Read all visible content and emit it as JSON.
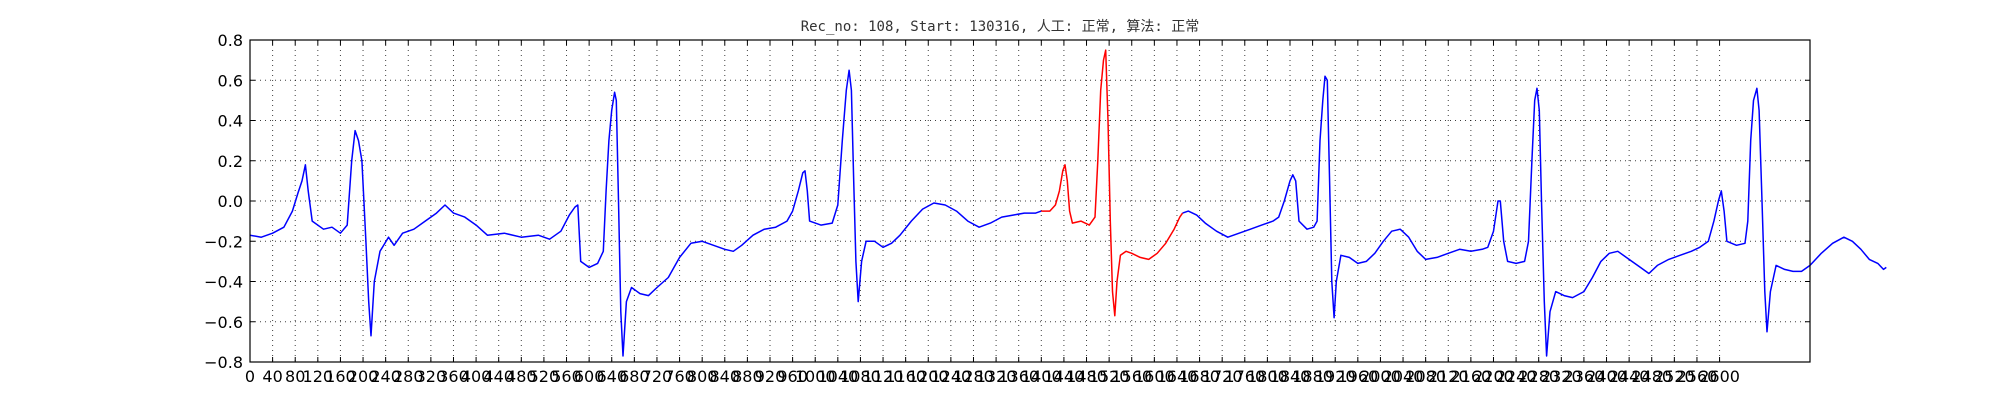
{
  "chart_data": {
    "type": "line",
    "title": "Rec_no: 108, Start: 130316, 人工: 正常, 算法: 正常",
    "xlabel": "",
    "ylabel": "",
    "xlim": [
      0,
      2760
    ],
    "ylim": [
      -0.8,
      0.8
    ],
    "grid": true,
    "x_ticks": [
      0,
      40,
      80,
      120,
      160,
      200,
      240,
      280,
      320,
      360,
      400,
      440,
      480,
      520,
      560,
      600,
      640,
      680,
      720,
      760,
      800,
      840,
      880,
      920,
      960,
      1000,
      1040,
      1080,
      1120,
      1160,
      1200,
      1240,
      1280,
      1320,
      1360,
      1400,
      1440,
      1480,
      1520,
      1560,
      1600,
      1640,
      1680,
      1720,
      1760,
      1800,
      1840,
      1880,
      1920,
      1960,
      2000,
      2040,
      2080,
      2120,
      2160,
      2200,
      2240,
      2280,
      2320,
      2360,
      2400,
      2440,
      2480,
      2520,
      2560,
      2600
    ],
    "y_ticks": [
      -0.8,
      -0.6,
      -0.4,
      -0.2,
      0.0,
      0.2,
      0.4,
      0.6,
      0.8
    ],
    "y_tick_labels": [
      "−0.8",
      "−0.6",
      "−0.4",
      "−0.2",
      "0.0",
      "0.2",
      "0.4",
      "0.6",
      "0.8"
    ],
    "series": [
      {
        "color": "#0000ff",
        "points": [
          [
            0,
            -0.17
          ],
          [
            20,
            -0.18
          ],
          [
            40,
            -0.16
          ],
          [
            60,
            -0.13
          ],
          [
            75,
            -0.05
          ],
          [
            85,
            0.04
          ],
          [
            92,
            0.1
          ],
          [
            98,
            0.18
          ],
          [
            103,
            0.05
          ],
          [
            110,
            -0.1
          ],
          [
            130,
            -0.14
          ],
          [
            145,
            -0.13
          ],
          [
            160,
            -0.16
          ],
          [
            172,
            -0.12
          ],
          [
            180,
            0.2
          ],
          [
            186,
            0.35
          ],
          [
            192,
            0.3
          ],
          [
            198,
            0.2
          ],
          [
            205,
            -0.2
          ],
          [
            210,
            -0.5
          ],
          [
            214,
            -0.67
          ],
          [
            220,
            -0.4
          ],
          [
            230,
            -0.25
          ],
          [
            245,
            -0.18
          ],
          [
            255,
            -0.22
          ],
          [
            270,
            -0.16
          ],
          [
            290,
            -0.14
          ],
          [
            310,
            -0.1
          ],
          [
            330,
            -0.06
          ],
          [
            345,
            -0.02
          ],
          [
            360,
            -0.06
          ],
          [
            380,
            -0.08
          ],
          [
            400,
            -0.12
          ],
          [
            420,
            -0.17
          ],
          [
            450,
            -0.16
          ],
          [
            480,
            -0.18
          ],
          [
            510,
            -0.17
          ],
          [
            530,
            -0.19
          ],
          [
            550,
            -0.15
          ],
          [
            565,
            -0.07
          ],
          [
            575,
            -0.03
          ],
          [
            580,
            -0.02
          ],
          [
            585,
            -0.3
          ],
          [
            600,
            -0.33
          ],
          [
            615,
            -0.31
          ],
          [
            625,
            -0.25
          ],
          [
            630,
            0.05
          ],
          [
            635,
            0.3
          ],
          [
            640,
            0.45
          ],
          [
            645,
            0.54
          ],
          [
            648,
            0.5
          ],
          [
            652,
            0.0
          ],
          [
            656,
            -0.55
          ],
          [
            660,
            -0.77
          ],
          [
            666,
            -0.5
          ],
          [
            675,
            -0.43
          ],
          [
            690,
            -0.46
          ],
          [
            705,
            -0.47
          ],
          [
            720,
            -0.43
          ],
          [
            740,
            -0.38
          ],
          [
            760,
            -0.28
          ],
          [
            780,
            -0.21
          ],
          [
            800,
            -0.2
          ],
          [
            820,
            -0.22
          ],
          [
            840,
            -0.24
          ],
          [
            855,
            -0.25
          ],
          [
            870,
            -0.22
          ],
          [
            890,
            -0.17
          ],
          [
            910,
            -0.14
          ],
          [
            930,
            -0.13
          ],
          [
            950,
            -0.1
          ],
          [
            960,
            -0.05
          ],
          [
            970,
            0.05
          ],
          [
            978,
            0.14
          ],
          [
            982,
            0.15
          ],
          [
            986,
            0.05
          ],
          [
            990,
            -0.1
          ],
          [
            1010,
            -0.12
          ],
          [
            1030,
            -0.11
          ],
          [
            1040,
            -0.02
          ],
          [
            1048,
            0.3
          ],
          [
            1055,
            0.55
          ],
          [
            1060,
            0.65
          ],
          [
            1064,
            0.55
          ],
          [
            1068,
            0.1
          ],
          [
            1072,
            -0.3
          ],
          [
            1076,
            -0.5
          ],
          [
            1082,
            -0.3
          ],
          [
            1090,
            -0.2
          ],
          [
            1105,
            -0.2
          ],
          [
            1120,
            -0.23
          ],
          [
            1135,
            -0.21
          ],
          [
            1150,
            -0.17
          ],
          [
            1170,
            -0.1
          ],
          [
            1190,
            -0.04
          ],
          [
            1210,
            -0.01
          ],
          [
            1230,
            -0.02
          ],
          [
            1250,
            -0.05
          ],
          [
            1270,
            -0.1
          ],
          [
            1290,
            -0.13
          ],
          [
            1310,
            -0.11
          ],
          [
            1330,
            -0.08
          ],
          [
            1350,
            -0.07
          ],
          [
            1370,
            -0.06
          ],
          [
            1390,
            -0.06
          ],
          [
            1400,
            -0.05
          ]
        ]
      },
      {
        "color": "#ff0000",
        "points": [
          [
            1400,
            -0.05
          ],
          [
            1415,
            -0.05
          ],
          [
            1425,
            -0.02
          ],
          [
            1432,
            0.05
          ],
          [
            1438,
            0.15
          ],
          [
            1442,
            0.18
          ],
          [
            1446,
            0.1
          ],
          [
            1450,
            -0.05
          ],
          [
            1455,
            -0.11
          ],
          [
            1470,
            -0.1
          ],
          [
            1485,
            -0.12
          ],
          [
            1495,
            -0.08
          ],
          [
            1500,
            0.2
          ],
          [
            1505,
            0.55
          ],
          [
            1510,
            0.7
          ],
          [
            1514,
            0.75
          ],
          [
            1518,
            0.4
          ],
          [
            1522,
            -0.1
          ],
          [
            1526,
            -0.45
          ],
          [
            1530,
            -0.57
          ],
          [
            1534,
            -0.4
          ],
          [
            1540,
            -0.27
          ],
          [
            1550,
            -0.25
          ],
          [
            1560,
            -0.26
          ],
          [
            1575,
            -0.28
          ],
          [
            1590,
            -0.29
          ],
          [
            1605,
            -0.26
          ],
          [
            1620,
            -0.21
          ],
          [
            1635,
            -0.14
          ],
          [
            1645,
            -0.08
          ],
          [
            1650,
            -0.06
          ]
        ]
      },
      {
        "color": "#0000ff",
        "points": [
          [
            1650,
            -0.06
          ],
          [
            1660,
            -0.05
          ],
          [
            1675,
            -0.07
          ],
          [
            1690,
            -0.11
          ],
          [
            1710,
            -0.15
          ],
          [
            1730,
            -0.18
          ],
          [
            1750,
            -0.16
          ],
          [
            1770,
            -0.14
          ],
          [
            1790,
            -0.12
          ],
          [
            1810,
            -0.1
          ],
          [
            1820,
            -0.08
          ],
          [
            1830,
            0.0
          ],
          [
            1840,
            0.1
          ],
          [
            1845,
            0.13
          ],
          [
            1850,
            0.1
          ],
          [
            1856,
            -0.1
          ],
          [
            1870,
            -0.14
          ],
          [
            1882,
            -0.13
          ],
          [
            1888,
            -0.1
          ],
          [
            1893,
            0.3
          ],
          [
            1898,
            0.5
          ],
          [
            1902,
            0.62
          ],
          [
            1906,
            0.6
          ],
          [
            1910,
            0.1
          ],
          [
            1914,
            -0.4
          ],
          [
            1918,
            -0.58
          ],
          [
            1922,
            -0.4
          ],
          [
            1930,
            -0.27
          ],
          [
            1945,
            -0.28
          ],
          [
            1960,
            -0.31
          ],
          [
            1975,
            -0.3
          ],
          [
            1990,
            -0.26
          ],
          [
            2005,
            -0.2
          ],
          [
            2020,
            -0.15
          ],
          [
            2035,
            -0.14
          ],
          [
            2050,
            -0.18
          ],
          [
            2065,
            -0.25
          ],
          [
            2080,
            -0.29
          ],
          [
            2100,
            -0.28
          ],
          [
            2120,
            -0.26
          ],
          [
            2140,
            -0.24
          ],
          [
            2160,
            -0.25
          ],
          [
            2180,
            -0.24
          ],
          [
            2190,
            -0.23
          ],
          [
            2200,
            -0.15
          ],
          [
            2208,
            0.0
          ],
          [
            2212,
            0.0
          ],
          [
            2218,
            -0.2
          ],
          [
            2225,
            -0.3
          ],
          [
            2240,
            -0.31
          ],
          [
            2255,
            -0.3
          ],
          [
            2262,
            -0.2
          ],
          [
            2268,
            0.2
          ],
          [
            2273,
            0.5
          ],
          [
            2277,
            0.56
          ],
          [
            2281,
            0.45
          ],
          [
            2285,
            0.0
          ],
          [
            2290,
            -0.5
          ],
          [
            2294,
            -0.77
          ],
          [
            2300,
            -0.55
          ],
          [
            2310,
            -0.45
          ],
          [
            2325,
            -0.47
          ],
          [
            2340,
            -0.48
          ],
          [
            2360,
            -0.45
          ],
          [
            2375,
            -0.38
          ],
          [
            2390,
            -0.3
          ],
          [
            2405,
            -0.26
          ],
          [
            2420,
            -0.25
          ],
          [
            2440,
            -0.29
          ],
          [
            2460,
            -0.33
          ],
          [
            2475,
            -0.36
          ],
          [
            2490,
            -0.32
          ],
          [
            2510,
            -0.29
          ],
          [
            2530,
            -0.27
          ],
          [
            2550,
            -0.25
          ],
          [
            2565,
            -0.23
          ],
          [
            2580,
            -0.2
          ],
          [
            2590,
            -0.1
          ],
          [
            2598,
            0.0
          ],
          [
            2603,
            0.05
          ],
          [
            2608,
            -0.05
          ],
          [
            2613,
            -0.2
          ],
          [
            2630,
            -0.22
          ],
          [
            2645,
            -0.21
          ],
          [
            2650,
            -0.1
          ],
          [
            2655,
            0.3
          ],
          [
            2660,
            0.5
          ],
          [
            2666,
            0.56
          ],
          [
            2670,
            0.45
          ],
          [
            2675,
            0.0
          ],
          [
            2680,
            -0.45
          ],
          [
            2684,
            -0.65
          ],
          [
            2690,
            -0.45
          ],
          [
            2700,
            -0.32
          ],
          [
            2715,
            -0.34
          ],
          [
            2730,
            -0.35
          ],
          [
            2745,
            -0.35
          ],
          [
            2760,
            -0.32
          ],
          [
            2780,
            -0.26
          ],
          [
            2800,
            -0.21
          ],
          [
            2820,
            -0.18
          ],
          [
            2835,
            -0.2
          ],
          [
            2850,
            -0.24
          ],
          [
            2865,
            -0.29
          ],
          [
            2880,
            -0.31
          ],
          [
            2890,
            -0.34
          ],
          [
            2895,
            -0.33
          ]
        ]
      }
    ]
  }
}
